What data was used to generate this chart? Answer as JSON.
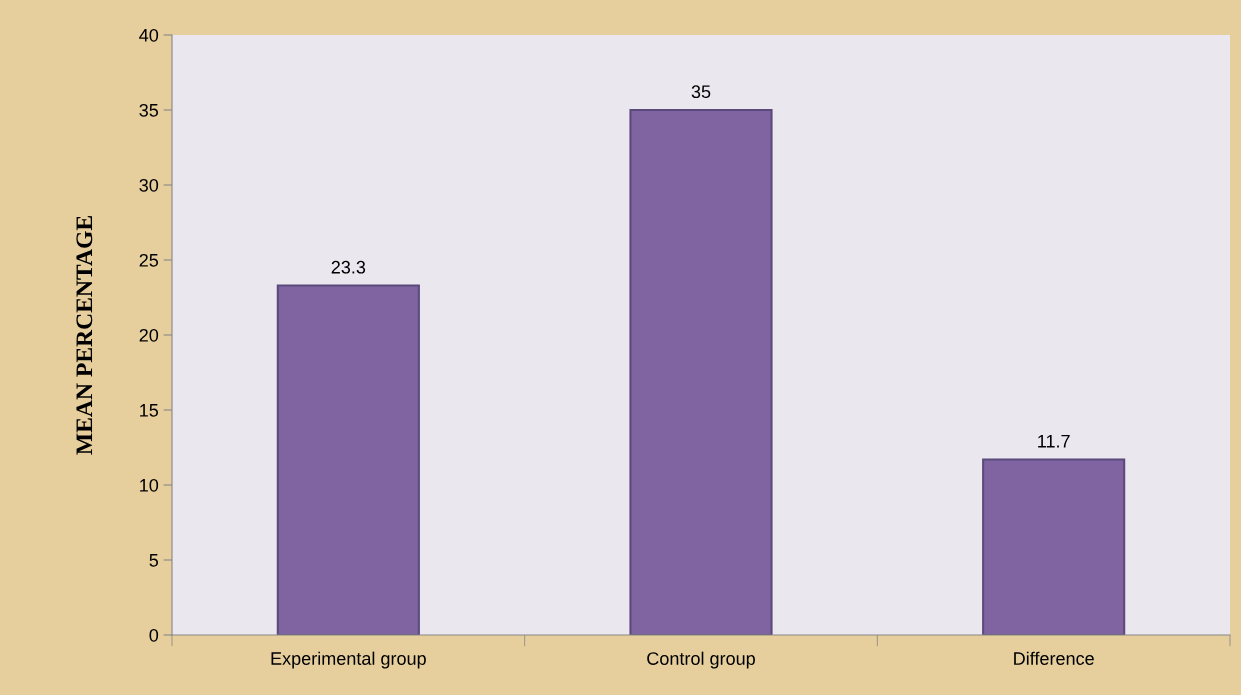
{
  "chart_data": {
    "type": "bar",
    "ylabel": "MEAN PERCENTAGE",
    "categories": [
      "Experimental group",
      "Control group",
      "Difference"
    ],
    "values": [
      23.3,
      35,
      11.7
    ],
    "color": "#8064a2",
    "ylim": [
      0,
      40
    ],
    "yticks": [
      0,
      5,
      10,
      15,
      20,
      25,
      30,
      35,
      40
    ],
    "data_labels": true,
    "grid": false,
    "legend": false
  }
}
